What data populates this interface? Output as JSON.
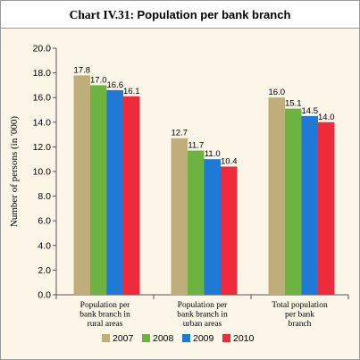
{
  "title": {
    "number": "Chart IV.31:",
    "name": "Population per bank branch"
  },
  "chart_data": {
    "type": "bar",
    "categories": [
      [
        "Population per",
        "bank branch in",
        "rural areas"
      ],
      [
        "Population per",
        "bank branch in",
        "urban areas"
      ],
      [
        "Total population",
        "per bank",
        "branch"
      ]
    ],
    "series": [
      {
        "name": "2007",
        "color": "#bfae7a",
        "values": [
          17.8,
          12.7,
          16.0
        ]
      },
      {
        "name": "2008",
        "color": "#6db33f",
        "values": [
          17.0,
          11.7,
          15.1
        ]
      },
      {
        "name": "2009",
        "color": "#1e7ad6",
        "values": [
          16.6,
          11.0,
          14.5
        ]
      },
      {
        "name": "2010",
        "color": "#ee2a3c",
        "values": [
          16.1,
          10.4,
          14.0
        ]
      }
    ],
    "value_labels": [
      [
        "17.8",
        "12.7",
        "16.0"
      ],
      [
        "17.0",
        "11.7",
        "15.1"
      ],
      [
        "16.6",
        "11.0",
        "14.5"
      ],
      [
        "16.1",
        "10.4",
        "14.0"
      ]
    ],
    "ylabel": "Number of persons (in '000)",
    "ylim": [
      0,
      20
    ],
    "yticks": [
      "0.0",
      "2.0",
      "4.0",
      "6.0",
      "8.0",
      "10.0",
      "12.0",
      "14.0",
      "16.0",
      "18.0",
      "20.0"
    ],
    "grid": false,
    "legend_position": "bottom"
  }
}
